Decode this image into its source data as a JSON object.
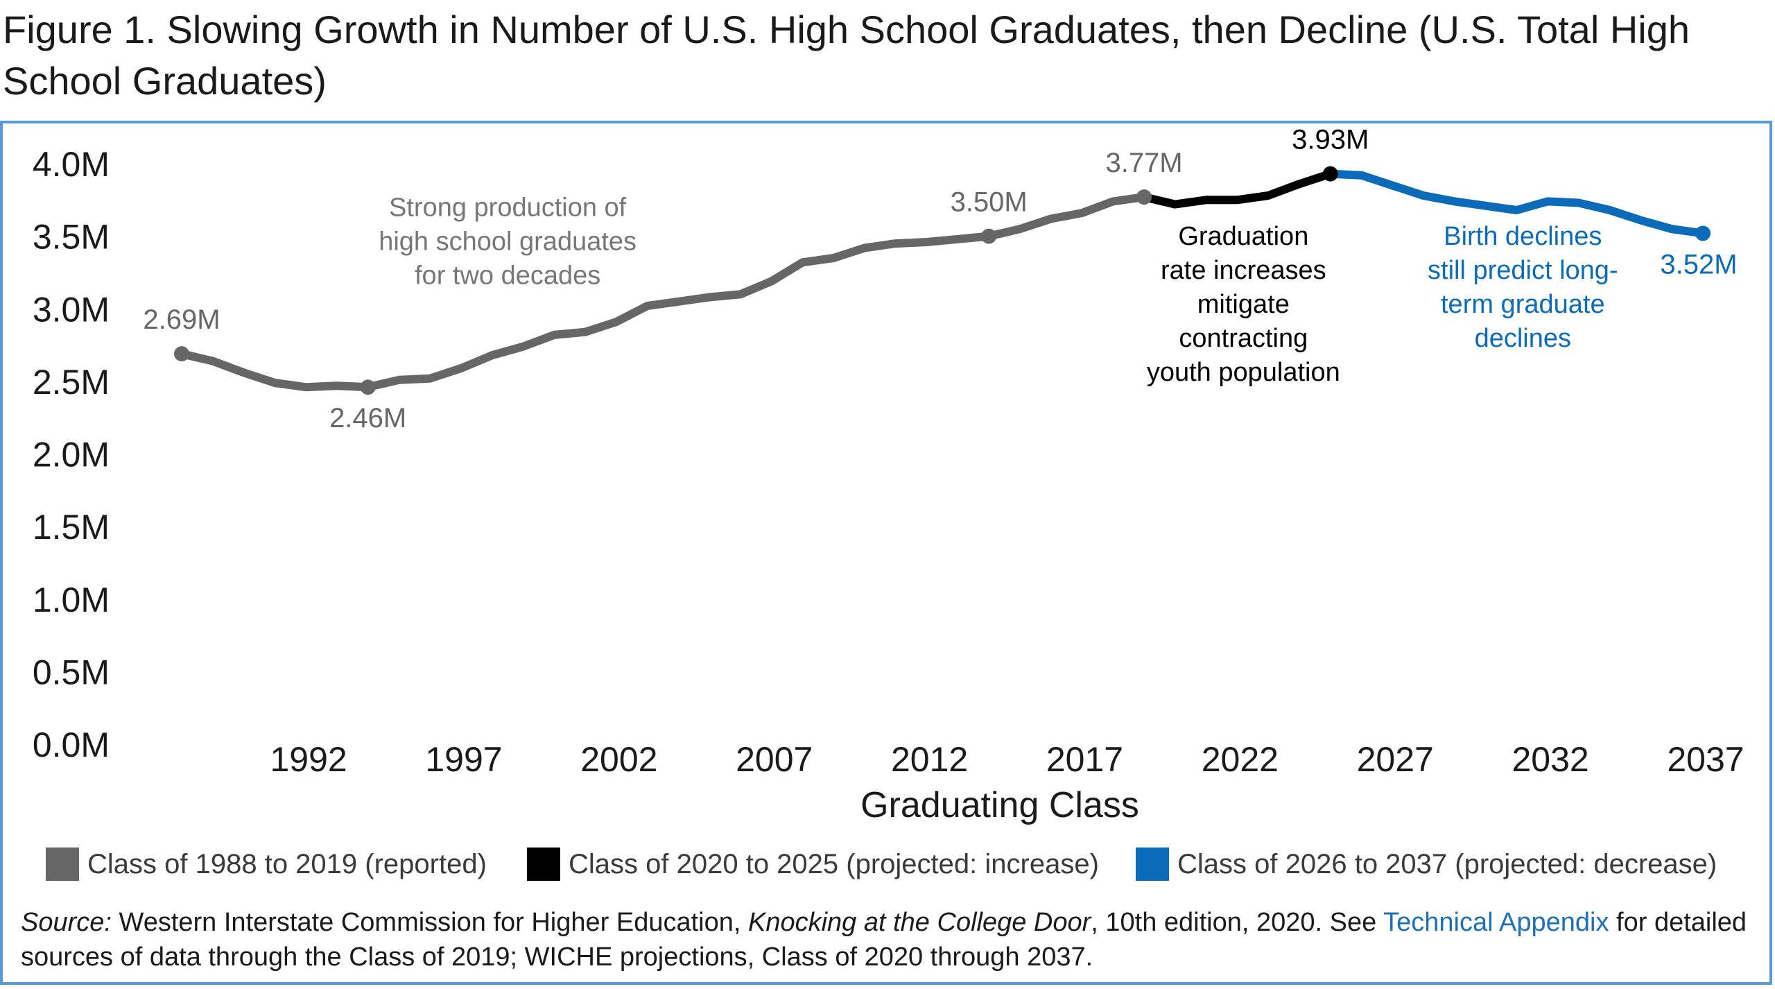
{
  "title": "Figure 1. Slowing Growth in Number of U.S. High School Graduates, then Decline (U.S. Total High School Graduates)",
  "colors": {
    "reported": "#666666",
    "increase": "#000000",
    "decrease": "#0b6bb8",
    "frame": "#5b9bd5",
    "link": "#1f6fb5"
  },
  "chart_data": {
    "type": "line",
    "xlabel": "Graduating Class",
    "ylabel": "",
    "ylim": [
      0,
      4.0
    ],
    "xlim": [
      1988,
      2037
    ],
    "y_ticks": [
      "0.0M",
      "0.5M",
      "1.0M",
      "1.5M",
      "2.0M",
      "2.5M",
      "3.0M",
      "3.5M",
      "4.0M"
    ],
    "y_tick_values": [
      0,
      0.5,
      1.0,
      1.5,
      2.0,
      2.5,
      3.0,
      3.5,
      4.0
    ],
    "x_ticks": [
      1992,
      1997,
      2002,
      2007,
      2012,
      2017,
      2022,
      2027,
      2032,
      2037
    ],
    "grid": false,
    "legend_position": "bottom",
    "series": [
      {
        "name": "Class of 1988 to 2019 (reported)",
        "color_key": "reported",
        "x": [
          1988,
          1989,
          1990,
          1991,
          1992,
          1993,
          1994,
          1995,
          1996,
          1997,
          1998,
          1999,
          2000,
          2001,
          2002,
          2003,
          2004,
          2005,
          2006,
          2007,
          2008,
          2009,
          2010,
          2011,
          2012,
          2013,
          2014,
          2015,
          2016,
          2017,
          2018,
          2019
        ],
        "y": [
          2.69,
          2.64,
          2.56,
          2.49,
          2.46,
          2.47,
          2.46,
          2.51,
          2.52,
          2.59,
          2.68,
          2.74,
          2.82,
          2.84,
          2.91,
          3.02,
          3.05,
          3.08,
          3.1,
          3.19,
          3.32,
          3.35,
          3.42,
          3.45,
          3.46,
          3.48,
          3.5,
          3.55,
          3.62,
          3.66,
          3.74,
          3.77
        ]
      },
      {
        "name": "Class of 2020 to 2025 (projected: increase)",
        "color_key": "increase",
        "x": [
          2019,
          2020,
          2021,
          2022,
          2023,
          2024,
          2025
        ],
        "y": [
          3.77,
          3.72,
          3.75,
          3.75,
          3.78,
          3.86,
          3.93
        ]
      },
      {
        "name": "Class of 2026 to 2037 (projected: decrease)",
        "color_key": "decrease",
        "x": [
          2025,
          2026,
          2027,
          2028,
          2029,
          2030,
          2031,
          2032,
          2033,
          2034,
          2035,
          2036,
          2037
        ],
        "y": [
          3.93,
          3.92,
          3.85,
          3.78,
          3.74,
          3.71,
          3.68,
          3.74,
          3.73,
          3.68,
          3.61,
          3.55,
          3.52
        ]
      }
    ],
    "point_labels": [
      {
        "x": 1988,
        "y": 2.69,
        "text": "2.69M",
        "color_key": "reported",
        "pos": "above"
      },
      {
        "x": 1994,
        "y": 2.46,
        "text": "2.46M",
        "color_key": "reported",
        "pos": "below"
      },
      {
        "x": 2014,
        "y": 3.5,
        "text": "3.50M",
        "color_key": "reported",
        "pos": "above"
      },
      {
        "x": 2019,
        "y": 3.77,
        "text": "3.77M",
        "color_key": "reported",
        "pos": "above"
      },
      {
        "x": 2025,
        "y": 3.93,
        "text": "3.93M",
        "color_key": "increase",
        "pos": "above"
      },
      {
        "x": 2037,
        "y": 3.52,
        "text": "3.52M",
        "color_key": "decrease",
        "pos": "below"
      }
    ],
    "annotations": [
      {
        "lines": [
          "Strong production of",
          "high school graduates",
          "for two decades"
        ],
        "color_key": "reported",
        "x": 1998.5,
        "y": 3.64
      },
      {
        "lines": [
          "Graduation",
          "rate increases",
          "mitigate",
          "contracting",
          "youth population"
        ],
        "color_key": "increase",
        "x": 2022.2,
        "y": 3.44
      },
      {
        "lines": [
          "Birth declines",
          "still predict long-",
          "term graduate",
          "declines"
        ],
        "color_key": "decrease",
        "x": 2031.2,
        "y": 3.44
      }
    ]
  },
  "source": {
    "label": "Source:",
    "text_1": " Western Interstate Commission for Higher Education, ",
    "book": "Knocking at the College Door",
    "text_2": ", 10th edition, 2020. See ",
    "link": "Technical Appendix",
    "text_3": " for detailed sources of data through the Class of 2019; WICHE projections, Class of 2020 through 2037."
  }
}
